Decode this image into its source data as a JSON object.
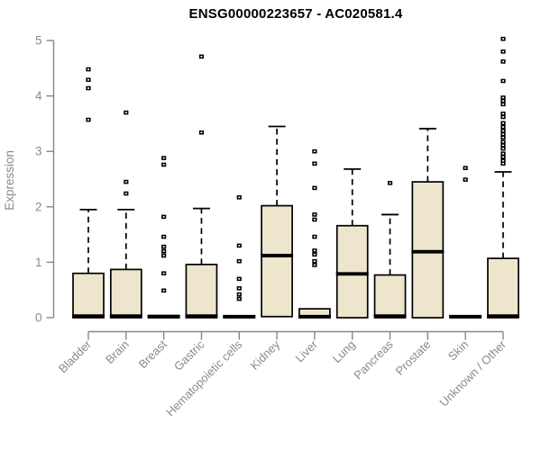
{
  "chart_data": {
    "type": "boxplot",
    "title": "ENSG00000223657 - AC020581.4",
    "xlabel": "",
    "ylabel": "Expression",
    "ylim": [
      0,
      5
    ],
    "yticks": [
      0,
      1,
      2,
      3,
      4,
      5
    ],
    "grid": false,
    "legend": false,
    "categories": [
      "Bladder",
      "Brain",
      "Breast",
      "Gastric",
      "Hematopoietic cells",
      "Kidney",
      "Liver",
      "Lung",
      "Pancreas",
      "Prostate",
      "Skin",
      "Unknown / Other"
    ],
    "series": [
      {
        "name": "Bladder",
        "q1": 0,
        "median": 0.03,
        "q3": 0.8,
        "whisker_low": 0,
        "whisker_high": 1.95,
        "outliers": [
          4.48,
          4.29,
          4.14,
          3.57
        ]
      },
      {
        "name": "Brain",
        "q1": 0,
        "median": 0.03,
        "q3": 0.87,
        "whisker_low": 0,
        "whisker_high": 1.95,
        "outliers": [
          3.7,
          2.45,
          2.24
        ]
      },
      {
        "name": "Breast",
        "q1": 0,
        "median": 0.02,
        "q3": 0.04,
        "whisker_low": 0,
        "whisker_high": 0.04,
        "outliers": [
          2.88,
          2.76,
          1.82,
          1.46,
          1.28,
          1.2,
          1.12,
          0.8,
          0.49
        ]
      },
      {
        "name": "Gastric",
        "q1": 0,
        "median": 0.03,
        "q3": 0.96,
        "whisker_low": 0,
        "whisker_high": 1.97,
        "outliers": [
          4.71,
          3.34
        ]
      },
      {
        "name": "Hematopoietic cells",
        "q1": 0,
        "median": 0.02,
        "q3": 0.03,
        "whisker_low": 0,
        "whisker_high": 0.03,
        "outliers": [
          2.17,
          1.3,
          1.02,
          0.7,
          0.53,
          0.42,
          0.34
        ]
      },
      {
        "name": "Kidney",
        "q1": 0.02,
        "median": 1.12,
        "q3": 2.02,
        "whisker_low": 0.02,
        "whisker_high": 3.45,
        "outliers": []
      },
      {
        "name": "Liver",
        "q1": 0,
        "median": 0.02,
        "q3": 0.16,
        "whisker_low": 0,
        "whisker_high": 0.16,
        "outliers": [
          3.0,
          2.78,
          2.34,
          1.86,
          1.77,
          1.46,
          1.21,
          1.14,
          1.02,
          0.95
        ]
      },
      {
        "name": "Lung",
        "q1": 0,
        "median": 0.79,
        "q3": 1.66,
        "whisker_low": 0,
        "whisker_high": 2.68,
        "outliers": []
      },
      {
        "name": "Pancreas",
        "q1": 0,
        "median": 0.03,
        "q3": 0.77,
        "whisker_low": 0,
        "whisker_high": 1.86,
        "outliers": [
          2.43
        ]
      },
      {
        "name": "Prostate",
        "q1": 0,
        "median": 1.19,
        "q3": 2.45,
        "whisker_low": 0,
        "whisker_high": 3.41,
        "outliers": []
      },
      {
        "name": "Skin",
        "q1": 0,
        "median": 0.02,
        "q3": 0.03,
        "whisker_low": 0,
        "whisker_high": 0.03,
        "outliers": [
          2.7,
          2.49
        ]
      },
      {
        "name": "Unknown / Other",
        "q1": 0,
        "median": 0.03,
        "q3": 1.07,
        "whisker_low": 0,
        "whisker_high": 2.63,
        "outliers": [
          5.03,
          4.8,
          4.62,
          4.27,
          3.97,
          3.91,
          3.85,
          3.68,
          3.62,
          3.51,
          3.44,
          3.37,
          3.31,
          3.25,
          3.17,
          3.11,
          3.05,
          2.96,
          2.9,
          2.83,
          2.78
        ]
      }
    ],
    "colors": {
      "box_fill": "#ede6cd",
      "box_border": "#000000",
      "median": "#000000",
      "whisker": "#000000",
      "outlier": "#000000",
      "axis": "#878787",
      "tick_label": "#8a8a8a",
      "title": "#000000",
      "background": "#ffffff"
    }
  }
}
